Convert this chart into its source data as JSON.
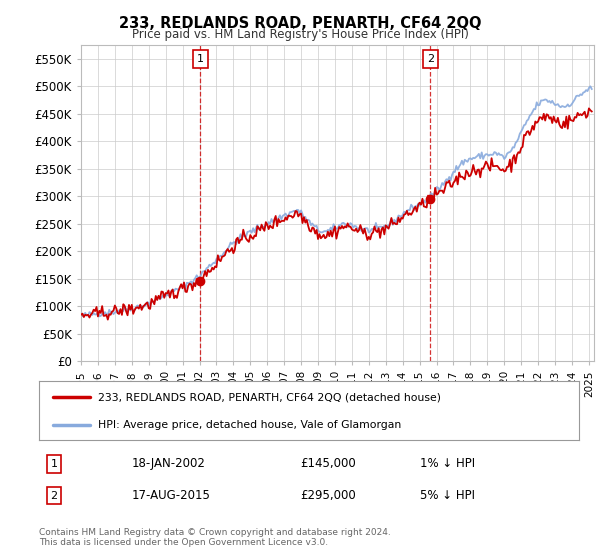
{
  "title": "233, REDLANDS ROAD, PENARTH, CF64 2QQ",
  "subtitle": "Price paid vs. HM Land Registry's House Price Index (HPI)",
  "xlim_start": 1995.0,
  "xlim_end": 2025.3,
  "ylim": [
    0,
    575000
  ],
  "yticks": [
    0,
    50000,
    100000,
    150000,
    200000,
    250000,
    300000,
    350000,
    400000,
    450000,
    500000,
    550000
  ],
  "ytick_labels": [
    "£0",
    "£50K",
    "£100K",
    "£150K",
    "£200K",
    "£250K",
    "£300K",
    "£350K",
    "£400K",
    "£450K",
    "£500K",
    "£550K"
  ],
  "xticks": [
    1995,
    1996,
    1997,
    1998,
    1999,
    2000,
    2001,
    2002,
    2003,
    2004,
    2005,
    2006,
    2007,
    2008,
    2009,
    2010,
    2011,
    2012,
    2013,
    2014,
    2015,
    2016,
    2017,
    2018,
    2019,
    2020,
    2021,
    2022,
    2023,
    2024,
    2025
  ],
  "sale1_x": 2002.05,
  "sale1_y": 145000,
  "sale1_label": "1",
  "sale2_x": 2015.63,
  "sale2_y": 295000,
  "sale2_label": "2",
  "line_color_property": "#cc0000",
  "line_color_hpi": "#88aadd",
  "marker_color": "#cc0000",
  "legend_property": "233, REDLANDS ROAD, PENARTH, CF64 2QQ (detached house)",
  "legend_hpi": "HPI: Average price, detached house, Vale of Glamorgan",
  "table_row1_num": "1",
  "table_row1_date": "18-JAN-2002",
  "table_row1_price": "£145,000",
  "table_row1_hpi": "1% ↓ HPI",
  "table_row2_num": "2",
  "table_row2_date": "17-AUG-2015",
  "table_row2_price": "£295,000",
  "table_row2_hpi": "5% ↓ HPI",
  "footnote1": "Contains HM Land Registry data © Crown copyright and database right 2024.",
  "footnote2": "This data is licensed under the Open Government Licence v3.0.",
  "background_color": "#ffffff",
  "plot_bg_color": "#ffffff",
  "grid_color": "#cccccc"
}
